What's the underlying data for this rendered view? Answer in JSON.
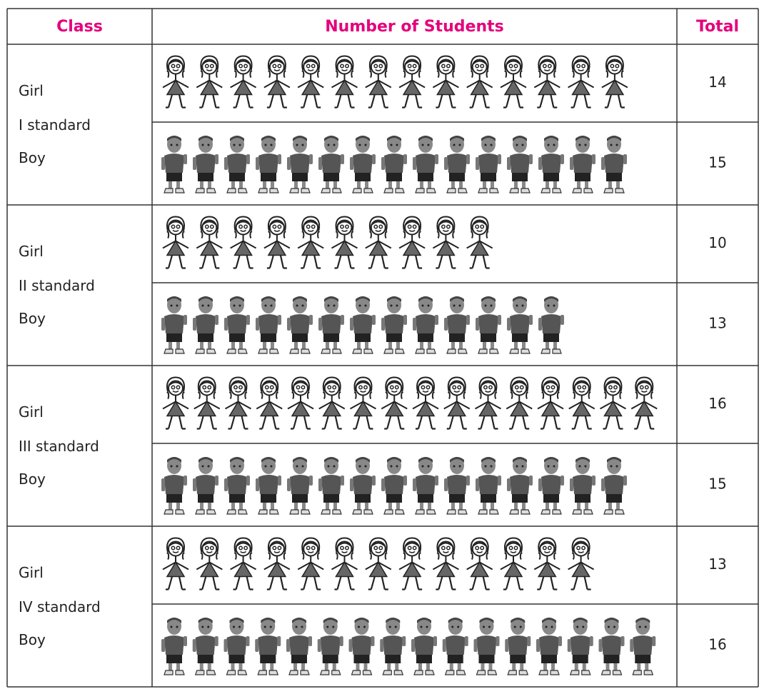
{
  "table": {
    "headers": [
      "Class",
      "Number of Students",
      "Total"
    ],
    "classes": [
      {
        "name": "I standard",
        "rows": [
          {
            "label": "Girl",
            "total": 14
          },
          {
            "label": "Boy",
            "total": 15
          }
        ]
      },
      {
        "name": "II standard",
        "rows": [
          {
            "label": "Girl",
            "total": 10
          },
          {
            "label": "Boy",
            "total": 13
          }
        ]
      },
      {
        "name": "III standard",
        "rows": [
          {
            "label": "Girl",
            "total": 16
          },
          {
            "label": "Boy",
            "total": 15
          }
        ]
      },
      {
        "name": "IV standard",
        "rows": [
          {
            "label": "Girl",
            "total": 13
          },
          {
            "label": "Boy",
            "total": 16
          }
        ]
      }
    ]
  }
}
